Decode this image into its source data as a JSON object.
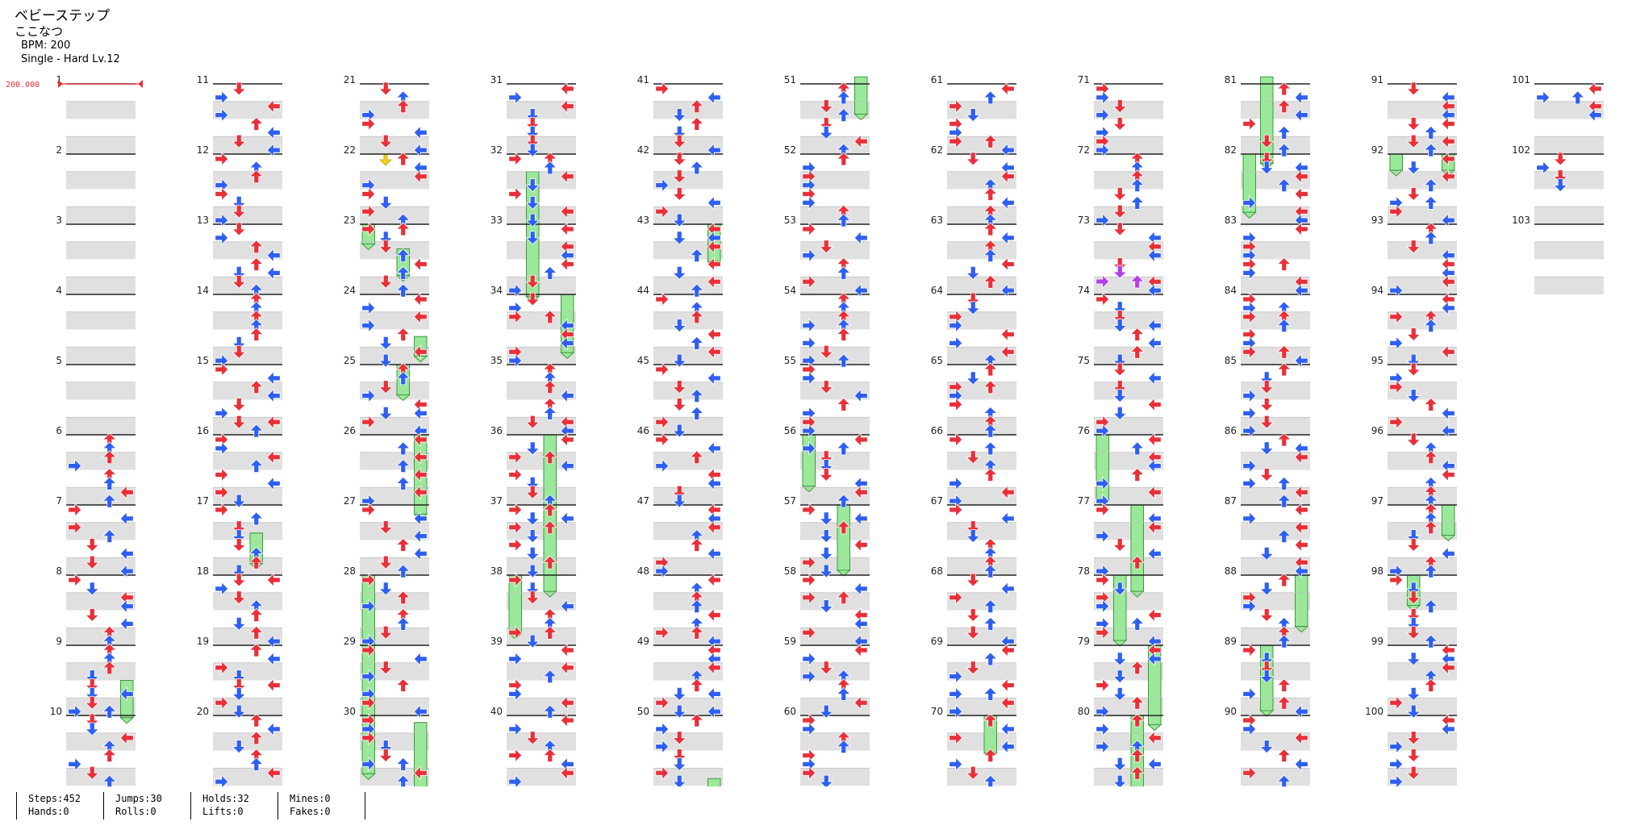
{
  "song": {
    "title": "ベビーステップ",
    "artist": "ここなつ",
    "bpm_text": "BPM: 200",
    "difficulty_text": "Single - Hard  Lv.12"
  },
  "bpm_marker": {
    "label": "200.000",
    "color": "#e8303a"
  },
  "measure_count": 103,
  "colors": {
    "quarter": "#e8303a",
    "eighth": "#2f5ff0",
    "hold": "#9be89b",
    "hold_border": "#3c9a3c",
    "mine": "#f0d020",
    "special": "#b040e8",
    "band": "#e0e0e0",
    "line": "#222222"
  },
  "stats": {
    "steps": "Steps:452",
    "hands": "Hands:0",
    "jumps": "Jumps:30",
    "rolls": "Rolls:0",
    "holds": "Holds:32",
    "lifts": "Lifts:0",
    "mines": "Mines:0",
    "fakes": "Fakes:0"
  }
}
